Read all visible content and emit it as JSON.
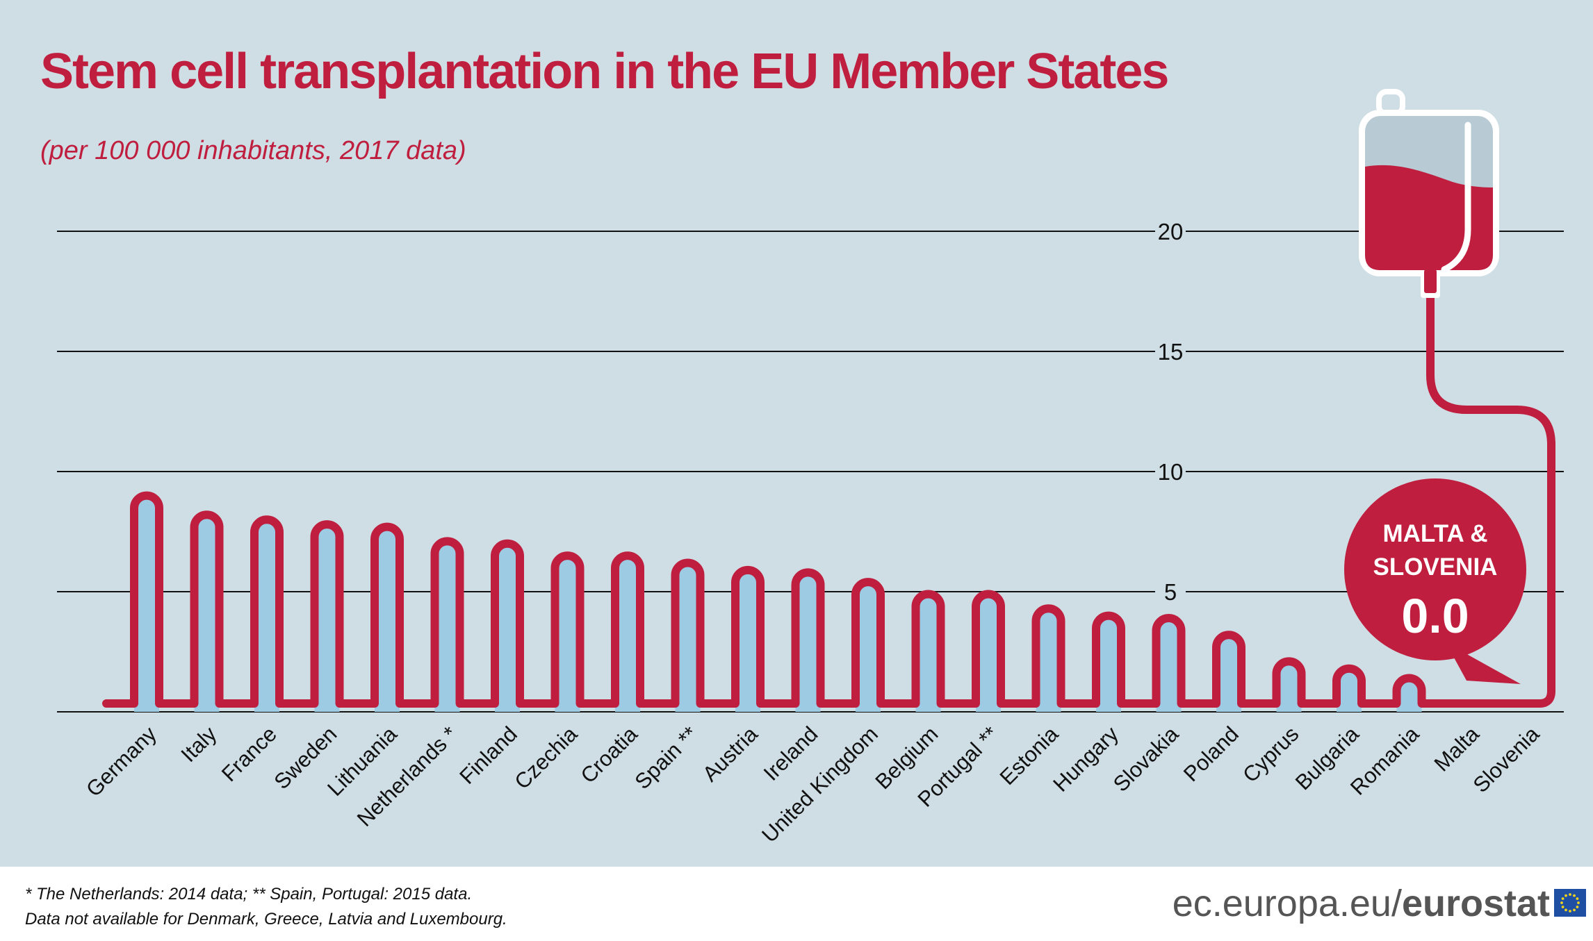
{
  "title": "Stem cell transplantation in the EU Member States",
  "subtitle": "(per 100 000 inhabitants, 2017 data)",
  "colors": {
    "accent": "#bf1e3e",
    "fill": "#9ccbe3",
    "background": "#cfdde4",
    "bag_top": "#b8cbd4"
  },
  "chart_data": {
    "type": "bar",
    "title": "Stem cell transplantation in the EU Member States",
    "subtitle": "(per 100 000 inhabitants, 2017 data)",
    "categories": [
      "Germany",
      "Italy",
      "France",
      "Sweden",
      "Lithuania",
      "Netherlands *",
      "Finland",
      "Czechia",
      "Croatia",
      "Spain **",
      "Austria",
      "Ireland",
      "United Kingdom",
      "Belgium",
      "Portugal **",
      "Estonia",
      "Hungary",
      "Slovakia",
      "Poland",
      "Cyprus",
      "Bulgaria",
      "Romania",
      "Malta",
      "Slovenia"
    ],
    "values": [
      9.0,
      8.2,
      8.0,
      7.8,
      7.7,
      7.1,
      7.0,
      6.5,
      6.5,
      6.2,
      5.9,
      5.8,
      5.4,
      4.9,
      4.9,
      4.3,
      4.0,
      3.9,
      3.2,
      2.1,
      1.8,
      1.4,
      0.0,
      0.0
    ],
    "ylim": [
      0,
      22
    ],
    "yticks": [
      5,
      10,
      15,
      20
    ],
    "grid": true,
    "callout": {
      "line1": "MALTA &",
      "line2": "SLOVENIA",
      "value": "0.0"
    }
  },
  "footer": {
    "note1": "* The Netherlands: 2014 data; ** Spain, Portugal: 2015 data.",
    "note2": "Data not available for Denmark, Greece, Latvia and Luxembourg.",
    "brand_prefix": "ec.europa.eu/",
    "brand_name": "eurostat"
  }
}
